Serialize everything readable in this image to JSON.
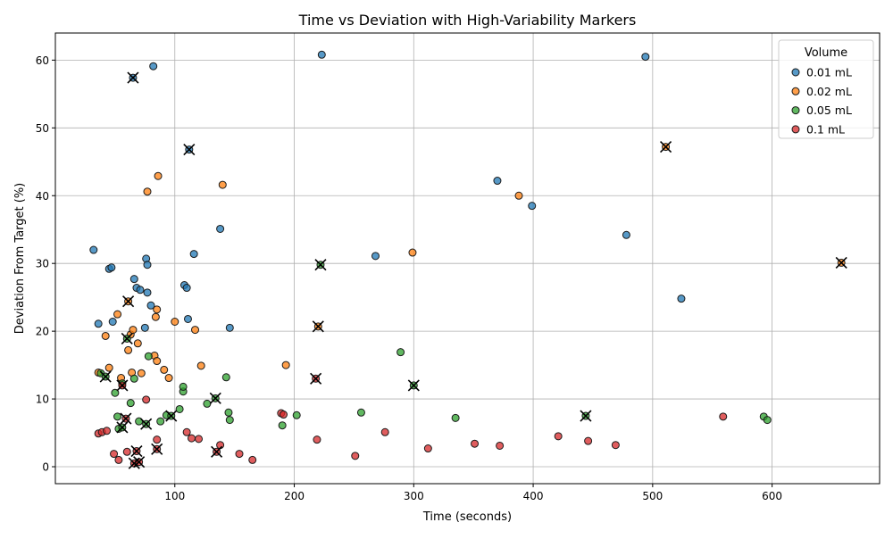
{
  "chart_data": {
    "type": "scatter",
    "title": "Time vs Deviation with High-Variability Markers",
    "xlabel": "Time (seconds)",
    "ylabel": "Deviation From Target (%)",
    "xlim": [
      0,
      690
    ],
    "ylim": [
      -2.5,
      64
    ],
    "xticks": [
      100,
      200,
      300,
      400,
      500,
      600
    ],
    "yticks": [
      0,
      10,
      20,
      30,
      40,
      50,
      60
    ],
    "grid": true,
    "legend": {
      "title": "Volume",
      "placement": "top-right"
    },
    "high_variability_marker": "x",
    "series": [
      {
        "name": "0.01 mL",
        "color": "#1f77b4",
        "points": [
          [
            32,
            32
          ],
          [
            36,
            21.1
          ],
          [
            45,
            29.2
          ],
          [
            47,
            29.4
          ],
          [
            48,
            21.4
          ],
          [
            65,
            57.4
          ],
          [
            66,
            27.7
          ],
          [
            68,
            26.4
          ],
          [
            71,
            26.1
          ],
          [
            75,
            20.5
          ],
          [
            76,
            30.7
          ],
          [
            77,
            29.8
          ],
          [
            77,
            25.7
          ],
          [
            80,
            23.8
          ],
          [
            82,
            59.1
          ],
          [
            108,
            26.8
          ],
          [
            110,
            26.4
          ],
          [
            111,
            21.8
          ],
          [
            112,
            46.8
          ],
          [
            116,
            31.4
          ],
          [
            138,
            35.1
          ],
          [
            146,
            20.5
          ],
          [
            223,
            60.8
          ],
          [
            268,
            31.1
          ],
          [
            370,
            42.2
          ],
          [
            399,
            38.5
          ],
          [
            478,
            34.2
          ],
          [
            494,
            60.5
          ],
          [
            524,
            24.8
          ]
        ],
        "high_variability": [
          [
            65,
            57.4
          ],
          [
            112,
            46.8
          ]
        ]
      },
      {
        "name": "0.02 mL",
        "color": "#ff7f0e",
        "points": [
          [
            36,
            13.9
          ],
          [
            42,
            19.3
          ],
          [
            45,
            14.6
          ],
          [
            52,
            22.5
          ],
          [
            55,
            13.1
          ],
          [
            61,
            24.4
          ],
          [
            61,
            17.2
          ],
          [
            63,
            19.5
          ],
          [
            64,
            13.9
          ],
          [
            65,
            20.2
          ],
          [
            69,
            18.2
          ],
          [
            72,
            13.8
          ],
          [
            77,
            40.6
          ],
          [
            83,
            16.4
          ],
          [
            84,
            22.1
          ],
          [
            85,
            23.2
          ],
          [
            85,
            15.6
          ],
          [
            86,
            42.9
          ],
          [
            91,
            14.3
          ],
          [
            95,
            13.1
          ],
          [
            100,
            21.4
          ],
          [
            117,
            20.2
          ],
          [
            122,
            14.9
          ],
          [
            140,
            41.6
          ],
          [
            193,
            15
          ],
          [
            220,
            20.7
          ],
          [
            299,
            31.6
          ],
          [
            388,
            40
          ],
          [
            511,
            47.2
          ],
          [
            658,
            30.1
          ]
        ],
        "high_variability": [
          [
            61,
            24.4
          ],
          [
            220,
            20.7
          ],
          [
            511,
            47.2
          ],
          [
            658,
            30.1
          ]
        ]
      },
      {
        "name": "0.05 mL",
        "color": "#2ca02c",
        "points": [
          [
            38,
            13.8
          ],
          [
            42,
            13.3
          ],
          [
            50,
            10.9
          ],
          [
            52,
            7.4
          ],
          [
            53,
            5.6
          ],
          [
            56,
            5.8
          ],
          [
            56,
            12.3
          ],
          [
            60,
            18.9
          ],
          [
            63,
            9.4
          ],
          [
            66,
            13
          ],
          [
            70,
            6.7
          ],
          [
            76,
            6.3
          ],
          [
            78,
            16.3
          ],
          [
            88,
            6.7
          ],
          [
            93,
            7.6
          ],
          [
            97,
            7.5
          ],
          [
            104,
            8.5
          ],
          [
            107,
            11.1
          ],
          [
            107,
            11.8
          ],
          [
            127,
            9.3
          ],
          [
            134,
            10.1
          ],
          [
            143,
            13.2
          ],
          [
            145,
            8
          ],
          [
            146,
            6.9
          ],
          [
            190,
            6.1
          ],
          [
            202,
            7.6
          ],
          [
            222,
            29.8
          ],
          [
            256,
            8
          ],
          [
            289,
            16.9
          ],
          [
            300,
            12
          ],
          [
            335,
            7.2
          ],
          [
            444,
            7.5
          ],
          [
            593,
            7.4
          ],
          [
            596,
            6.9
          ]
        ],
        "high_variability": [
          [
            42,
            13.3
          ],
          [
            56,
            5.8
          ],
          [
            60,
            18.9
          ],
          [
            76,
            6.3
          ],
          [
            97,
            7.5
          ],
          [
            134,
            10.1
          ],
          [
            222,
            29.8
          ],
          [
            300,
            12
          ],
          [
            444,
            7.5
          ]
        ]
      },
      {
        "name": "0.1 mL",
        "color": "#d62728",
        "points": [
          [
            36,
            4.9
          ],
          [
            39,
            5.1
          ],
          [
            43,
            5.3
          ],
          [
            49,
            1.9
          ],
          [
            53,
            1
          ],
          [
            56,
            12
          ],
          [
            59,
            7.1
          ],
          [
            60,
            2.2
          ],
          [
            66,
            0.5
          ],
          [
            68,
            2.3
          ],
          [
            70,
            0.7
          ],
          [
            76,
            9.9
          ],
          [
            85,
            4
          ],
          [
            85,
            2.6
          ],
          [
            110,
            5.1
          ],
          [
            114,
            4.2
          ],
          [
            120,
            4.1
          ],
          [
            135,
            2.2
          ],
          [
            138,
            3.2
          ],
          [
            154,
            1.9
          ],
          [
            165,
            1
          ],
          [
            189,
            7.9
          ],
          [
            191,
            7.7
          ],
          [
            218,
            13
          ],
          [
            219,
            4
          ],
          [
            251,
            1.6
          ],
          [
            276,
            5.1
          ],
          [
            312,
            2.7
          ],
          [
            351,
            3.4
          ],
          [
            372,
            3.1
          ],
          [
            421,
            4.5
          ],
          [
            446,
            3.8
          ],
          [
            469,
            3.2
          ],
          [
            559,
            7.4
          ]
        ],
        "high_variability": [
          [
            56,
            12
          ],
          [
            59,
            7.1
          ],
          [
            66,
            0.5
          ],
          [
            68,
            2.3
          ],
          [
            70,
            0.7
          ],
          [
            85,
            2.6
          ],
          [
            135,
            2.2
          ],
          [
            218,
            13
          ]
        ]
      }
    ]
  }
}
